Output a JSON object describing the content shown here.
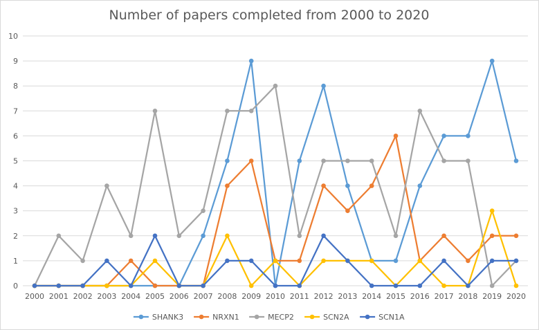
{
  "chart_data": {
    "type": "line",
    "title": "Number of papers completed from 2000 to 2020",
    "xlabel": "",
    "ylabel": "",
    "x": [
      "2000",
      "2001",
      "2002",
      "2003",
      "2004",
      "2005",
      "2006",
      "2007",
      "2008",
      "2009",
      "2010",
      "2011",
      "2012",
      "2013",
      "2014",
      "2015",
      "2016",
      "2017",
      "2018",
      "2019",
      "2020"
    ],
    "y_ticks": [
      "0",
      "1",
      "2",
      "3",
      "4",
      "5",
      "6",
      "7",
      "8",
      "9",
      "10"
    ],
    "ylim": [
      0,
      10
    ],
    "grid": true,
    "legend_position": "bottom",
    "series": [
      {
        "name": "SHANK3",
        "color": "#5B9BD5",
        "values": [
          0,
          0,
          0,
          0,
          0,
          0,
          0,
          2,
          5,
          9,
          0,
          5,
          8,
          4,
          1,
          1,
          4,
          6,
          6,
          9,
          5
        ]
      },
      {
        "name": "NRXN1",
        "color": "#ED7D31",
        "values": [
          0,
          0,
          0,
          0,
          1,
          0,
          0,
          0,
          4,
          5,
          1,
          1,
          4,
          3,
          4,
          6,
          1,
          2,
          1,
          2,
          2
        ]
      },
      {
        "name": "MECP2",
        "color": "#A5A5A5",
        "values": [
          0,
          2,
          1,
          4,
          2,
          7,
          2,
          3,
          7,
          7,
          8,
          2,
          5,
          5,
          5,
          2,
          7,
          5,
          5,
          0,
          1
        ]
      },
      {
        "name": "SCN2A",
        "color": "#FFC000",
        "values": [
          0,
          0,
          0,
          0,
          0,
          1,
          0,
          0,
          2,
          0,
          1,
          0,
          1,
          1,
          1,
          0,
          1,
          0,
          0,
          3,
          0
        ]
      },
      {
        "name": "SCN1A",
        "color": "#4472C4",
        "values": [
          0,
          0,
          0,
          1,
          0,
          2,
          0,
          0,
          1,
          1,
          0,
          0,
          2,
          1,
          0,
          0,
          0,
          1,
          0,
          1,
          1
        ]
      }
    ]
  }
}
